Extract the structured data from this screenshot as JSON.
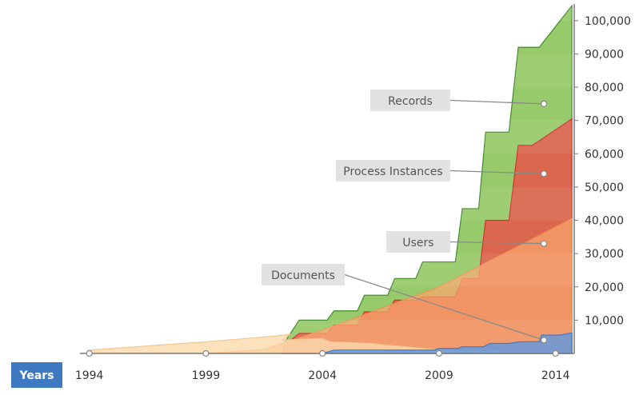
{
  "chart_data": {
    "type": "area",
    "title": "",
    "xlabel": "Years",
    "ylabel": "",
    "xlim": [
      1993.6,
      2014.8
    ],
    "ylim": [
      0,
      105000
    ],
    "x_ticks": [
      "1994",
      "1999",
      "2004",
      "2009",
      "2014"
    ],
    "y_ticks": [
      "10,000",
      "20,000",
      "30,000",
      "40,000",
      "50,000",
      "60,000",
      "70,000",
      "80,000",
      "90,000",
      "100,000"
    ],
    "grid": false,
    "legend": "callouts",
    "series": [
      {
        "name": "Records",
        "color": "#8cc45a",
        "points": [
          [
            2002.3,
            0
          ],
          [
            2002.3,
            2500
          ],
          [
            2003.0,
            10000
          ],
          [
            2004.2,
            10000
          ],
          [
            2004.5,
            12800
          ],
          [
            2005.5,
            12800
          ],
          [
            2005.8,
            17500
          ],
          [
            2006.8,
            17500
          ],
          [
            2007.1,
            22500
          ],
          [
            2008.0,
            22500
          ],
          [
            2008.3,
            27500
          ],
          [
            2009.7,
            27500
          ],
          [
            2010.0,
            43500
          ],
          [
            2010.7,
            43500
          ],
          [
            2011.0,
            66500
          ],
          [
            2012.0,
            66500
          ],
          [
            2012.4,
            92000
          ],
          [
            2013.3,
            92000
          ],
          [
            2014.7,
            104500
          ]
        ]
      },
      {
        "name": "Process Instances",
        "color": "#f04545",
        "points": [
          [
            2002.3,
            0
          ],
          [
            2002.3,
            2000
          ],
          [
            2003.0,
            6000
          ],
          [
            2004.2,
            6000
          ],
          [
            2004.5,
            8500
          ],
          [
            2005.5,
            8500
          ],
          [
            2005.8,
            12500
          ],
          [
            2006.8,
            12500
          ],
          [
            2007.1,
            16000
          ],
          [
            2008.0,
            16000
          ],
          [
            2008.3,
            17000
          ],
          [
            2009.7,
            17000
          ],
          [
            2010.0,
            22500
          ],
          [
            2010.7,
            22500
          ],
          [
            2011.0,
            40000
          ],
          [
            2012.0,
            40000
          ],
          [
            2012.4,
            62500
          ],
          [
            2013.0,
            62500
          ],
          [
            2014.7,
            70500
          ]
        ]
      },
      {
        "name": "Users",
        "color": "#f9a66e",
        "points": [
          [
            1999.0,
            0
          ],
          [
            2001.5,
            1200
          ],
          [
            2004.0,
            7000
          ],
          [
            2009.0,
            20000
          ],
          [
            2014.7,
            40500
          ]
        ]
      },
      {
        "name": "Documents",
        "color": "#fbd7a8",
        "points": [
          [
            1994.0,
            1000
          ],
          [
            1999.0,
            3500
          ],
          [
            2001.6,
            5000
          ],
          [
            2002.6,
            5700
          ],
          [
            2002.3,
            4000
          ],
          [
            2004.0,
            4500
          ],
          [
            2004.3,
            3500
          ],
          [
            2006.0,
            3000
          ],
          [
            2009.0,
            1000
          ],
          [
            2014.7,
            0
          ]
        ]
      },
      {
        "name": "",
        "color": "#5b93d8",
        "points": [
          [
            2004.0,
            0
          ],
          [
            2004.5,
            1000
          ],
          [
            2008.8,
            1000
          ],
          [
            2009.0,
            1500
          ],
          [
            2009.8,
            1500
          ],
          [
            2010.0,
            2000
          ],
          [
            2010.9,
            2000
          ],
          [
            2011.2,
            3000
          ],
          [
            2012.0,
            3000
          ],
          [
            2012.5,
            3500
          ],
          [
            2013.3,
            3500
          ],
          [
            2013.4,
            5500
          ],
          [
            2014.2,
            5500
          ],
          [
            2014.7,
            6200
          ]
        ]
      }
    ],
    "callouts": [
      {
        "label": "Records",
        "value": 75000,
        "year": 2013.5
      },
      {
        "label": "Process Instances",
        "value": 54000,
        "year": 2013.5
      },
      {
        "label": "Users",
        "value": 33000,
        "year": 2013.5
      },
      {
        "label": "Documents",
        "value": 4000,
        "year": 2013.5
      }
    ],
    "axis_markers": [
      "1994",
      "1999",
      "2004",
      "2009",
      "2014"
    ]
  }
}
